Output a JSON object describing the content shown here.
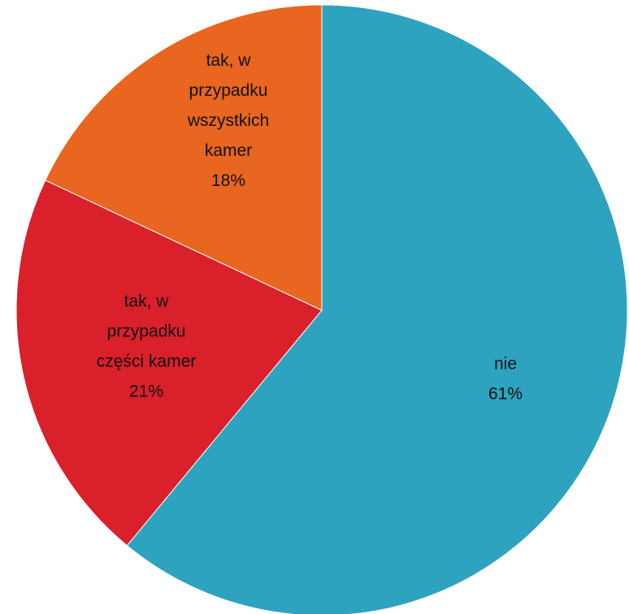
{
  "chart_data": {
    "type": "pie",
    "title": "",
    "start_angle_deg": 0,
    "direction": "clockwise",
    "legend": "none",
    "slices": [
      {
        "key": "nie",
        "label_lines": [
          "nie",
          "61%"
        ],
        "value": 61,
        "color": "#2ea3bf"
      },
      {
        "key": "czesci",
        "label_lines": [
          "tak, w",
          "przypadku",
          "części kamer",
          "21%"
        ],
        "value": 21,
        "color": "#d9202b"
      },
      {
        "key": "wszystkich",
        "label_lines": [
          "tak, w",
          "przypadku",
          "wszystkich",
          "kamer",
          "18%"
        ],
        "value": 18,
        "color": "#e8661f"
      }
    ]
  }
}
